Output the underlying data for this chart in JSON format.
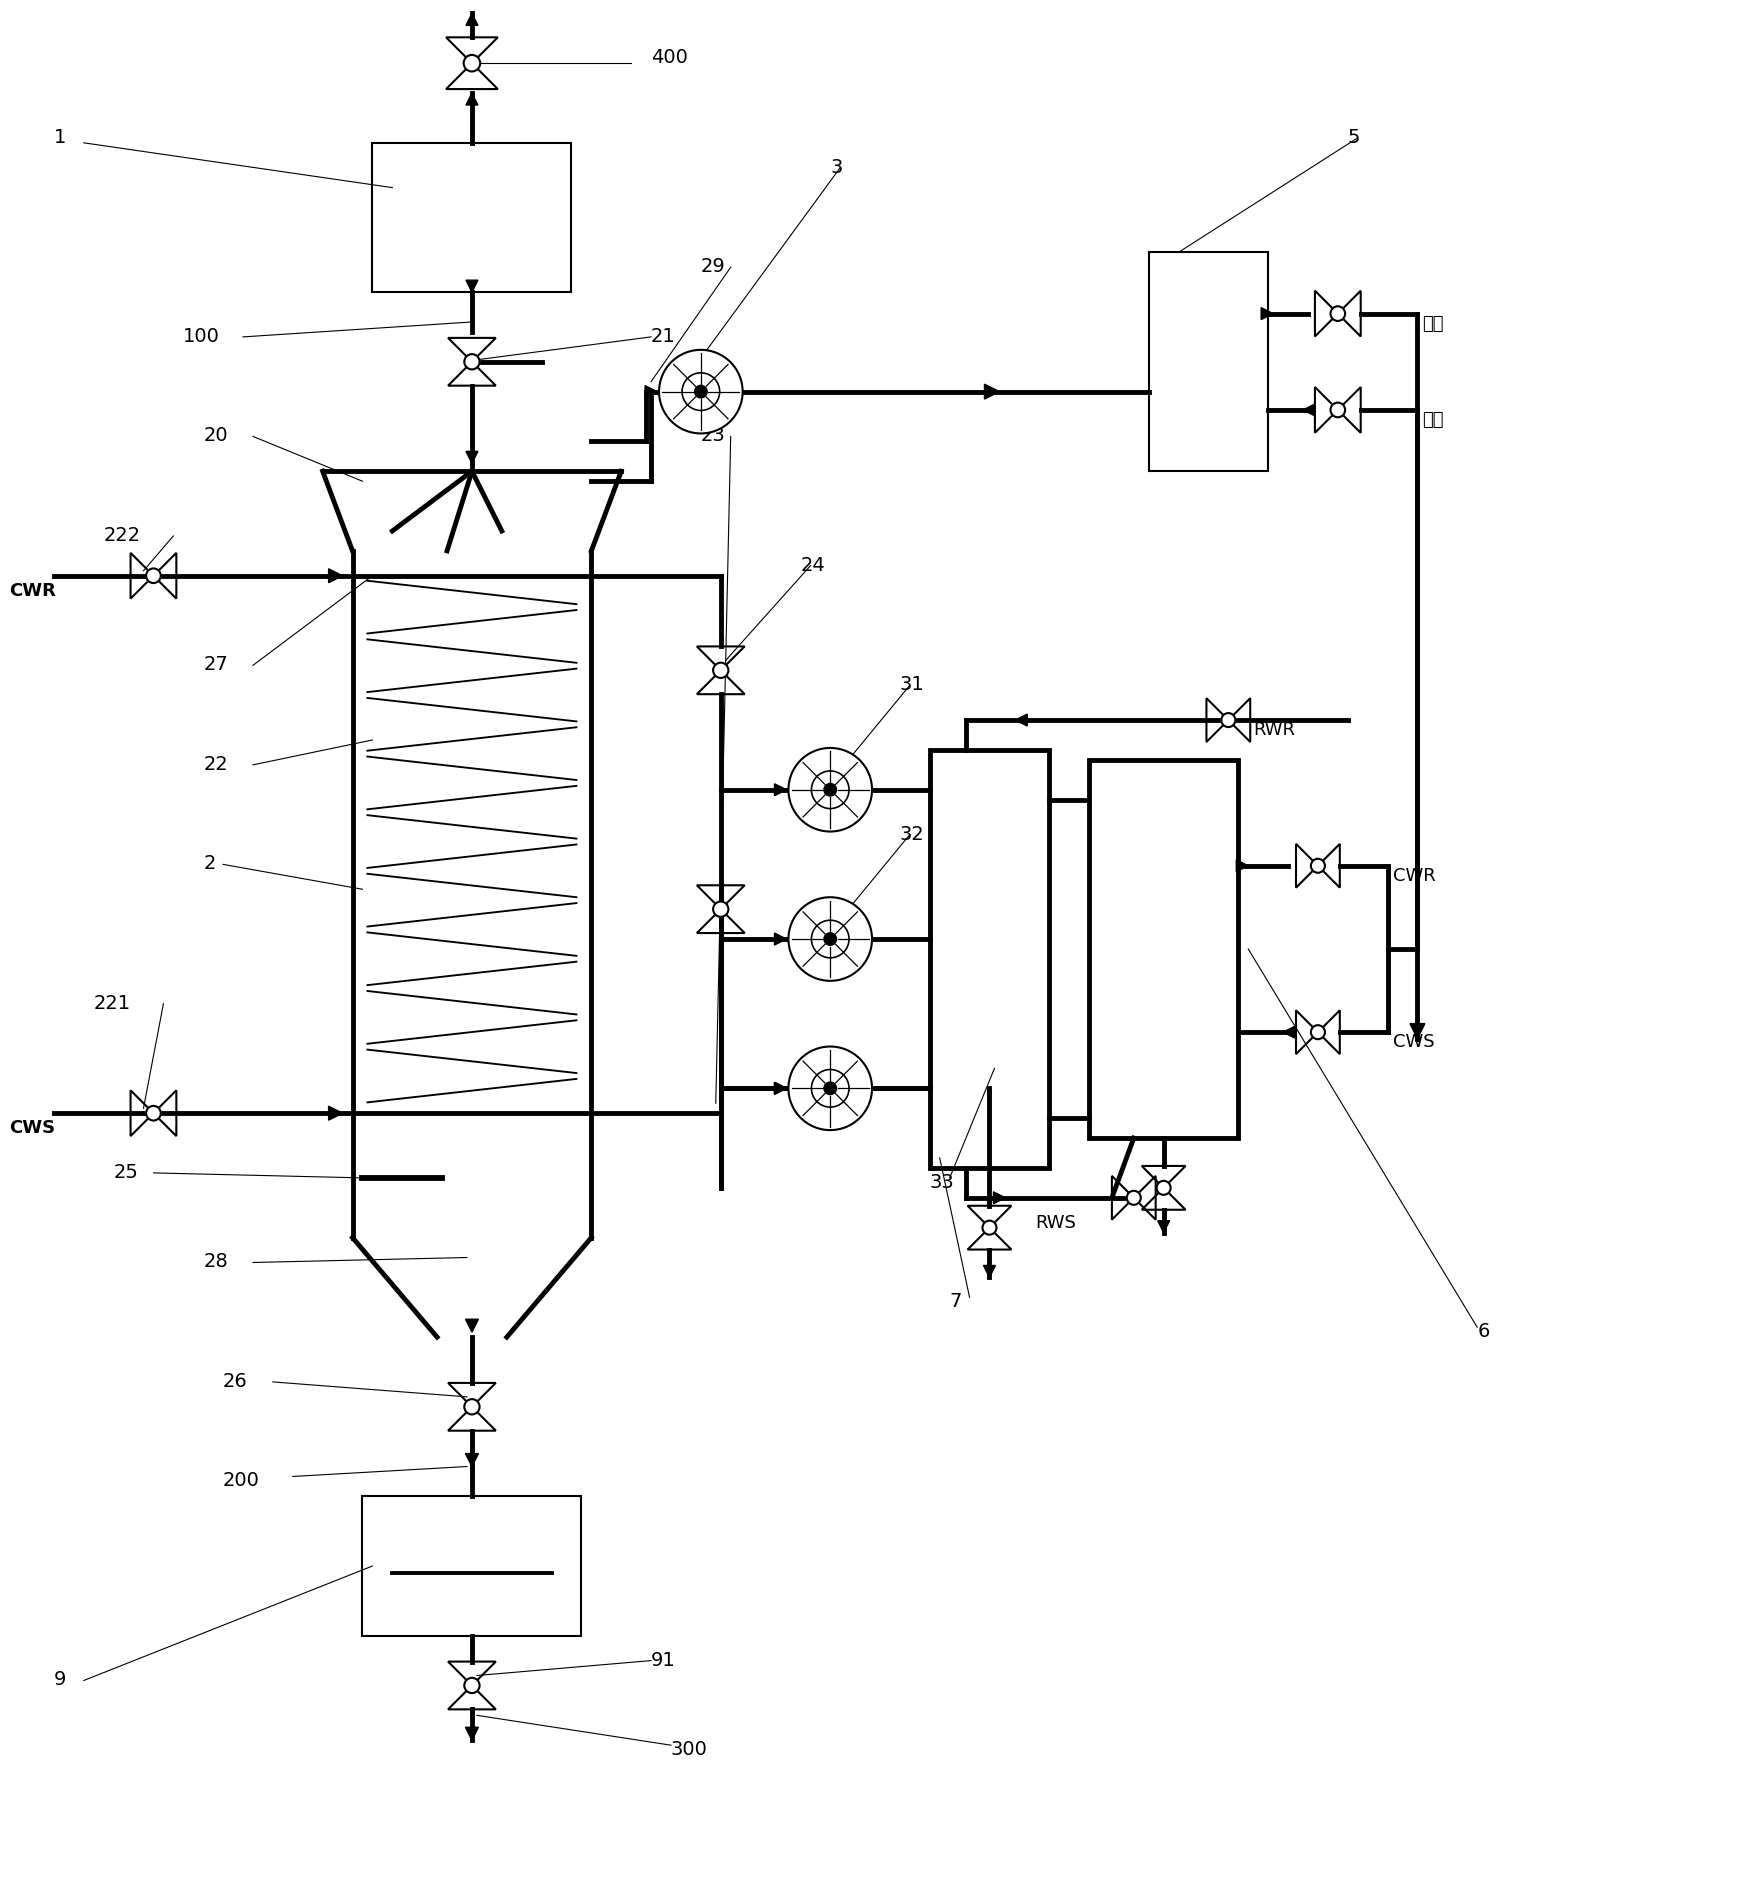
{
  "bg_color": "#ffffff",
  "lc": "#000000",
  "tlw": 3.5,
  "nlw": 1.5,
  "fig_w": 17.58,
  "fig_h": 18.89,
  "dpi": 100,
  "xlim": [
    0,
    17.58
  ],
  "ylim": [
    0,
    18.89
  ]
}
